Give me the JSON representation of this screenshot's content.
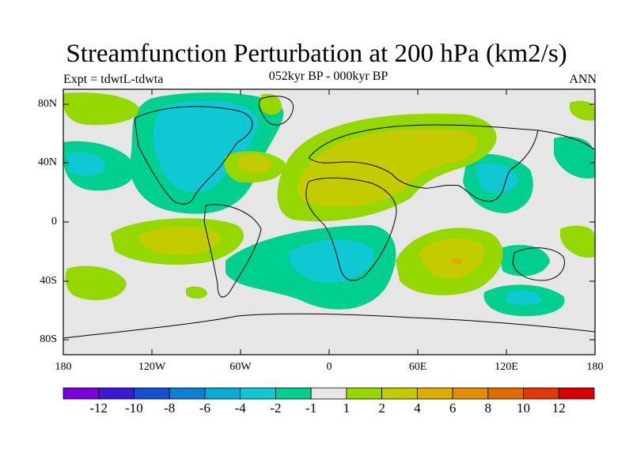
{
  "title": "Streamfunction Perturbation at 200 hPa (km2/s)",
  "subtitle_left": "Expt = tdwtL-tdwta",
  "subtitle_center": "052kyr BP - 000kyr BP",
  "subtitle_right": "ANN",
  "lat_labels": [
    "80N",
    "40N",
    "0",
    "40S",
    "80S"
  ],
  "lon_labels": [
    "180",
    "120W",
    "60W",
    "0",
    "60E",
    "120E",
    "180"
  ],
  "colorbar": {
    "labels": [
      "-12",
      "-10",
      "-8",
      "-6",
      "-4",
      "-2",
      "-1",
      "1",
      "2",
      "4",
      "6",
      "8",
      "10",
      "12"
    ],
    "colors": [
      "#7a00e0",
      "#3c17d6",
      "#1450d2",
      "#0a82d8",
      "#06abd6",
      "#0fc8d3",
      "#00d08f",
      "#e6e6e6",
      "#95d800",
      "#c4cb00",
      "#dcae00",
      "#e28e00",
      "#e36a00",
      "#e03800",
      "#d90000"
    ]
  },
  "colors": {
    "land_outline": "#000000",
    "background_field": "#e6e6e6"
  }
}
